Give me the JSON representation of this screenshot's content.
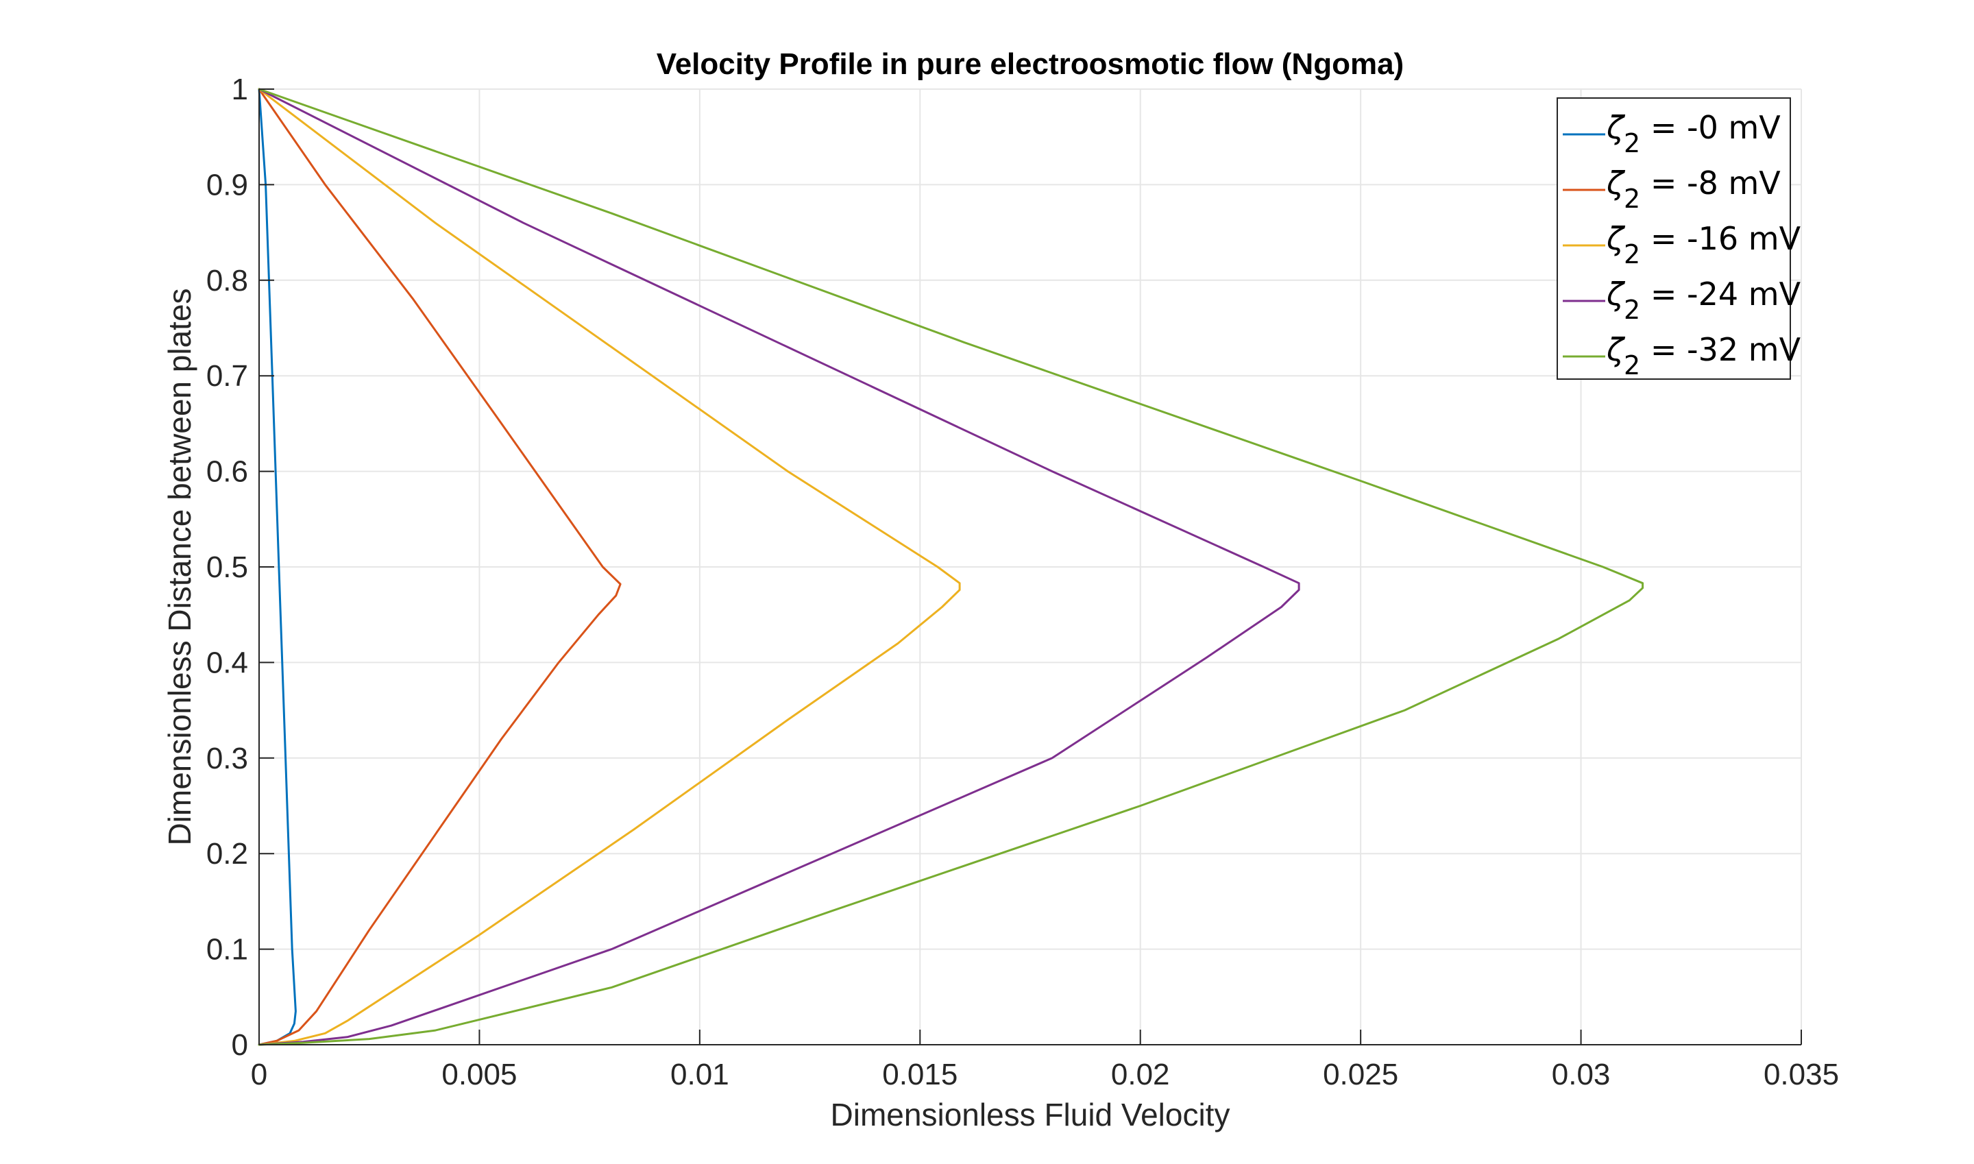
{
  "chart_data": {
    "type": "line",
    "title": "Velocity Profile in pure electroosmotic flow (Ngoma)",
    "xlabel": "Dimensionless Fluid Velocity",
    "ylabel": "Dimensionless Distance between plates",
    "xlim": [
      0,
      0.035
    ],
    "ylim": [
      0,
      1
    ],
    "xticks": [
      0,
      0.005,
      0.01,
      0.015,
      0.02,
      0.025,
      0.03,
      0.035
    ],
    "xtick_labels": [
      "0",
      "0.005",
      "0.01",
      "0.015",
      "0.02",
      "0.025",
      "0.03",
      "0.035"
    ],
    "yticks": [
      0,
      0.1,
      0.2,
      0.3,
      0.4,
      0.5,
      0.6,
      0.7,
      0.8,
      0.9,
      1
    ],
    "ytick_labels": [
      "0",
      "0.1",
      "0.2",
      "0.3",
      "0.4",
      "0.5",
      "0.6",
      "0.7",
      "0.8",
      "0.9",
      "1"
    ],
    "grid": true,
    "legend_position": "top-right",
    "series": [
      {
        "name": "ζ2 = -0 mV",
        "legend_symbol": "ζ",
        "legend_sub": "2",
        "legend_rest": " = -0 mV",
        "color": "#0072BD",
        "points": [
          [
            0,
            0
          ],
          [
            0.0004,
            0.004
          ],
          [
            0.0007,
            0.012
          ],
          [
            0.0008,
            0.022
          ],
          [
            0.00083,
            0.035
          ],
          [
            0.00075,
            0.1
          ],
          [
            0.0006,
            0.3
          ],
          [
            0.00045,
            0.5
          ],
          [
            0.0003,
            0.7
          ],
          [
            0.00015,
            0.9
          ],
          [
            0,
            1
          ]
        ]
      },
      {
        "name": "ζ2 = -8 mV",
        "legend_symbol": "ζ",
        "legend_sub": "2",
        "legend_rest": " = -8 mV",
        "color": "#D95319",
        "points": [
          [
            0,
            0
          ],
          [
            0.0004,
            0.004
          ],
          [
            0.0009,
            0.015
          ],
          [
            0.0013,
            0.035
          ],
          [
            0.0025,
            0.12
          ],
          [
            0.004,
            0.22
          ],
          [
            0.0055,
            0.32
          ],
          [
            0.0068,
            0.4
          ],
          [
            0.0077,
            0.45
          ],
          [
            0.0081,
            0.47
          ],
          [
            0.0082,
            0.482
          ],
          [
            0.0078,
            0.5
          ],
          [
            0.0055,
            0.65
          ],
          [
            0.0035,
            0.78
          ],
          [
            0.0015,
            0.9
          ],
          [
            0,
            1
          ]
        ]
      },
      {
        "name": "ζ2 = -16 mV",
        "legend_symbol": "ζ",
        "legend_sub": "2",
        "legend_rest": " = -16 mV",
        "color": "#EDB120",
        "points": [
          [
            0,
            0
          ],
          [
            0.0008,
            0.004
          ],
          [
            0.0015,
            0.012
          ],
          [
            0.002,
            0.025
          ],
          [
            0.005,
            0.115
          ],
          [
            0.0085,
            0.225
          ],
          [
            0.012,
            0.34
          ],
          [
            0.0145,
            0.42
          ],
          [
            0.0155,
            0.458
          ],
          [
            0.0159,
            0.476
          ],
          [
            0.0159,
            0.483
          ],
          [
            0.0154,
            0.5
          ],
          [
            0.012,
            0.6
          ],
          [
            0.008,
            0.73
          ],
          [
            0.004,
            0.86
          ],
          [
            0,
            1
          ]
        ]
      },
      {
        "name": "ζ2 = -24 mV",
        "legend_symbol": "ζ",
        "legend_sub": "2",
        "legend_rest": " = -24 mV",
        "color": "#7E2F8E",
        "points": [
          [
            0,
            0
          ],
          [
            0.001,
            0.003
          ],
          [
            0.002,
            0.008
          ],
          [
            0.003,
            0.02
          ],
          [
            0.008,
            0.1
          ],
          [
            0.013,
            0.2
          ],
          [
            0.018,
            0.3
          ],
          [
            0.0215,
            0.405
          ],
          [
            0.0232,
            0.458
          ],
          [
            0.0236,
            0.476
          ],
          [
            0.0236,
            0.483
          ],
          [
            0.0228,
            0.5
          ],
          [
            0.018,
            0.6
          ],
          [
            0.012,
            0.73
          ],
          [
            0.006,
            0.86
          ],
          [
            0,
            1
          ]
        ]
      },
      {
        "name": "ζ2 = -32 mV",
        "legend_symbol": "ζ",
        "legend_sub": "2",
        "legend_rest": " = -32 mV",
        "color": "#77AC30",
        "points": [
          [
            0,
            0
          ],
          [
            0.001,
            0.002
          ],
          [
            0.0025,
            0.006
          ],
          [
            0.004,
            0.015
          ],
          [
            0.008,
            0.06
          ],
          [
            0.013,
            0.14
          ],
          [
            0.02,
            0.25
          ],
          [
            0.026,
            0.35
          ],
          [
            0.0295,
            0.425
          ],
          [
            0.0311,
            0.465
          ],
          [
            0.0314,
            0.478
          ],
          [
            0.0314,
            0.483
          ],
          [
            0.0305,
            0.5
          ],
          [
            0.025,
            0.59
          ],
          [
            0.016,
            0.735
          ],
          [
            0.008,
            0.87
          ],
          [
            0,
            1
          ]
        ]
      }
    ]
  }
}
